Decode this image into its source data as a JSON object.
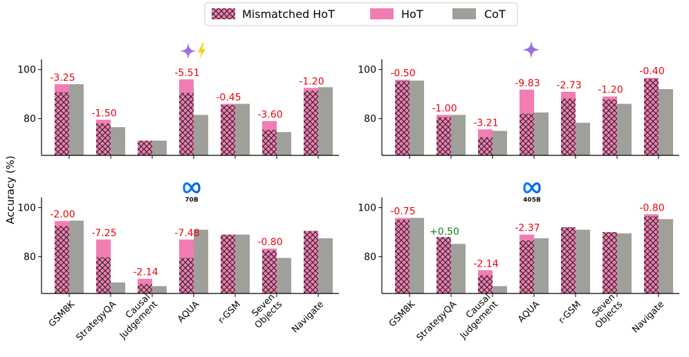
{
  "colors": {
    "hot": "#f27db3",
    "mismatched": "#f27db3",
    "cot": "#a0a09b",
    "negative": "#e8000b",
    "positive": "#1a7a1a",
    "hatch": "#1f1f1f"
  },
  "legend": [
    {
      "key": "mismatched",
      "label": "Mismatched HoT"
    },
    {
      "key": "hot",
      "label": "HoT"
    },
    {
      "key": "cot",
      "label": "CoT"
    }
  ],
  "ylabel": "Accuracy (%)",
  "y_ticks": [
    "80",
    "100"
  ],
  "categories": [
    {
      "id": "gsm8k",
      "lines": [
        "GSM8K"
      ]
    },
    {
      "id": "strategyqa",
      "lines": [
        "StrategyQA"
      ]
    },
    {
      "id": "causal",
      "lines": [
        "Causal",
        "Judgement"
      ]
    },
    {
      "id": "aqua",
      "lines": [
        "AQUA"
      ]
    },
    {
      "id": "rgsm",
      "lines": [
        "r-GSM"
      ]
    },
    {
      "id": "seven",
      "lines": [
        "Seven",
        "Objects"
      ]
    },
    {
      "id": "navigate",
      "lines": [
        "Navigate"
      ]
    }
  ],
  "panels": [
    {
      "id": "gemini-flash",
      "logo": "gemini-flash-icon",
      "logo_text": ""
    },
    {
      "id": "gemini-pro",
      "logo": "gemini-icon",
      "logo_text": ""
    },
    {
      "id": "llama-70b",
      "logo": "meta-icon",
      "logo_text": "70B"
    },
    {
      "id": "llama-405b",
      "logo": "meta-icon",
      "logo_text": "405B"
    }
  ],
  "chart_data": [
    {
      "type": "bar",
      "panel": "gemini-flash",
      "categories": [
        "GSM8K",
        "StrategyQA",
        "Causal Judgement",
        "AQUA",
        "r-GSM",
        "Seven Objects",
        "Navigate"
      ],
      "ylim": [
        65,
        103
      ],
      "series": [
        {
          "name": "HoT",
          "values": [
            94.0,
            79.5,
            71.0,
            96.0,
            86.0,
            79.0,
            92.5
          ]
        },
        {
          "name": "Mismatched HoT",
          "values": [
            90.75,
            78.0,
            71.0,
            90.49,
            85.55,
            75.4,
            91.3
          ]
        },
        {
          "name": "CoT",
          "values": [
            94.0,
            76.5,
            71.0,
            81.5,
            86.0,
            74.5,
            92.8
          ]
        }
      ],
      "annotations": [
        "-3.25",
        "-1.50",
        "",
        "-5.51",
        "-0.45",
        "-3.60",
        "-1.20"
      ]
    },
    {
      "type": "bar",
      "panel": "gemini-pro",
      "categories": [
        "GSM8K",
        "StrategyQA",
        "Causal Judgement",
        "AQUA",
        "r-GSM",
        "Seven Objects",
        "Navigate"
      ],
      "ylim": [
        65,
        103
      ],
      "series": [
        {
          "name": "HoT",
          "values": [
            95.8,
            81.5,
            75.6,
            91.8,
            90.9,
            89.0,
            96.6
          ]
        },
        {
          "name": "Mismatched HoT",
          "values": [
            95.3,
            80.5,
            72.39,
            81.97,
            88.17,
            87.8,
            96.2
          ]
        },
        {
          "name": "CoT",
          "values": [
            95.5,
            81.5,
            75.0,
            82.5,
            78.3,
            86.0,
            92.0
          ]
        }
      ],
      "annotations": [
        "-0.50",
        "-1.00",
        "-3.21",
        "-9.83",
        "-2.73",
        "-1.20",
        "-0.40"
      ]
    },
    {
      "type": "bar",
      "panel": "llama-70b",
      "categories": [
        "GSM8K",
        "StrategyQA",
        "Causal Judgement",
        "AQUA",
        "r-GSM",
        "Seven Objects",
        "Navigate"
      ],
      "ylim": [
        65,
        103
      ],
      "series": [
        {
          "name": "HoT",
          "values": [
            94.5,
            87.0,
            71.0,
            87.0,
            89.0,
            83.3,
            90.5
          ]
        },
        {
          "name": "Mismatched HoT",
          "values": [
            92.5,
            79.75,
            68.86,
            79.52,
            89.0,
            82.5,
            90.5
          ]
        },
        {
          "name": "CoT",
          "values": [
            94.7,
            69.5,
            68.0,
            91.0,
            89.0,
            79.5,
            87.5
          ]
        }
      ],
      "annotations": [
        "-2.00",
        "-7.25",
        "-2.14",
        "-7.48",
        "",
        "-0.80",
        ""
      ]
    },
    {
      "type": "bar",
      "panel": "llama-405b",
      "categories": [
        "GSM8K",
        "StrategyQA",
        "Causal Judgement",
        "AQUA",
        "r-GSM",
        "Seven Objects",
        "Navigate"
      ],
      "ylim": [
        65,
        103
      ],
      "series": [
        {
          "name": "HoT",
          "values": [
            95.8,
            87.5,
            74.5,
            89.0,
            92.0,
            90.0,
            97.3
          ]
        },
        {
          "name": "Mismatched HoT",
          "values": [
            95.05,
            88.0,
            72.36,
            86.63,
            92.0,
            90.0,
            96.5
          ]
        },
        {
          "name": "CoT",
          "values": [
            95.8,
            85.2,
            68.0,
            87.5,
            91.0,
            89.5,
            95.3
          ]
        }
      ],
      "annotations": [
        "-0.75",
        "+0.50",
        "-2.14",
        "-2.37",
        "",
        "",
        "-0.80"
      ]
    }
  ]
}
